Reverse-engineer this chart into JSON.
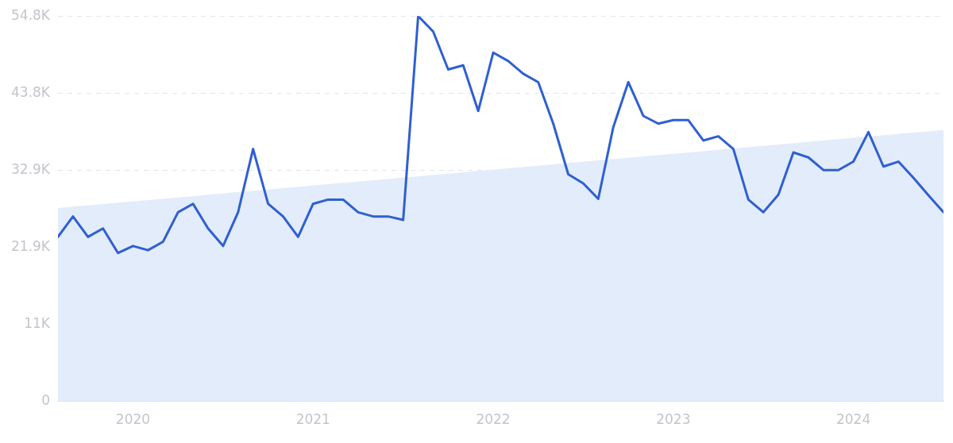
{
  "chart_data": {
    "type": "line",
    "x": [
      "2019-08",
      "2019-09",
      "2019-10",
      "2019-11",
      "2019-12",
      "2020-01",
      "2020-02",
      "2020-03",
      "2020-04",
      "2020-05",
      "2020-06",
      "2020-07",
      "2020-08",
      "2020-09",
      "2020-10",
      "2020-11",
      "2020-12",
      "2021-01",
      "2021-02",
      "2021-03",
      "2021-04",
      "2021-05",
      "2021-06",
      "2021-07",
      "2021-08",
      "2021-09",
      "2021-10",
      "2021-11",
      "2021-12",
      "2022-01",
      "2022-02",
      "2022-03",
      "2022-04",
      "2022-05",
      "2022-06",
      "2022-07",
      "2022-08",
      "2022-09",
      "2022-10",
      "2022-11",
      "2022-12",
      "2023-01",
      "2023-02",
      "2023-03",
      "2023-04",
      "2023-05",
      "2023-06",
      "2023-07",
      "2023-08",
      "2023-09",
      "2023-10",
      "2023-11",
      "2023-12",
      "2024-01",
      "2024-02",
      "2024-03",
      "2024-04",
      "2024-05",
      "2024-06",
      "2024-07"
    ],
    "series": [
      {
        "type": "area",
        "color": "#e2ecfb",
        "x": [
          "2019-08",
          "2024-07"
        ],
        "values": [
          27500,
          38600
        ]
      },
      {
        "color": "#2f5fd2",
        "values": [
          23400,
          26300,
          23400,
          24600,
          21100,
          22100,
          21500,
          22700,
          26900,
          28100,
          24600,
          22100,
          26900,
          35900,
          28100,
          26300,
          23400,
          28100,
          28700,
          28700,
          26900,
          26300,
          26300,
          25800,
          54800,
          52600,
          47200,
          47800,
          41300,
          49600,
          48400,
          46600,
          45400,
          39500,
          32300,
          31000,
          28800,
          39000,
          45400,
          40600,
          39500,
          40000,
          40000,
          37100,
          37700,
          35900,
          28700,
          26900,
          29400,
          35400,
          34700,
          32900,
          32900,
          34100,
          38300,
          33400,
          34100,
          31800,
          29300,
          26900
        ]
      }
    ],
    "xlim": [
      "2019-08",
      "2024-07"
    ],
    "xticks": [
      {
        "value": "2020-01",
        "label": "2020"
      },
      {
        "value": "2021-01",
        "label": "2021"
      },
      {
        "value": "2022-01",
        "label": "2022"
      },
      {
        "value": "2023-01",
        "label": "2023"
      },
      {
        "value": "2024-01",
        "label": "2024"
      }
    ],
    "ylim": [
      0,
      54800
    ],
    "yticks": [
      0,
      {
        "value": 10960,
        "label": "11K"
      },
      {
        "value": 21920,
        "label": "21.9K"
      },
      {
        "value": 32880,
        "label": "32.9K"
      },
      {
        "value": 43840,
        "label": "43.8K"
      },
      {
        "value": 54800,
        "label": "54.8K"
      }
    ],
    "grid": "y",
    "legend": false,
    "marker": "none",
    "line_style": "solid"
  }
}
